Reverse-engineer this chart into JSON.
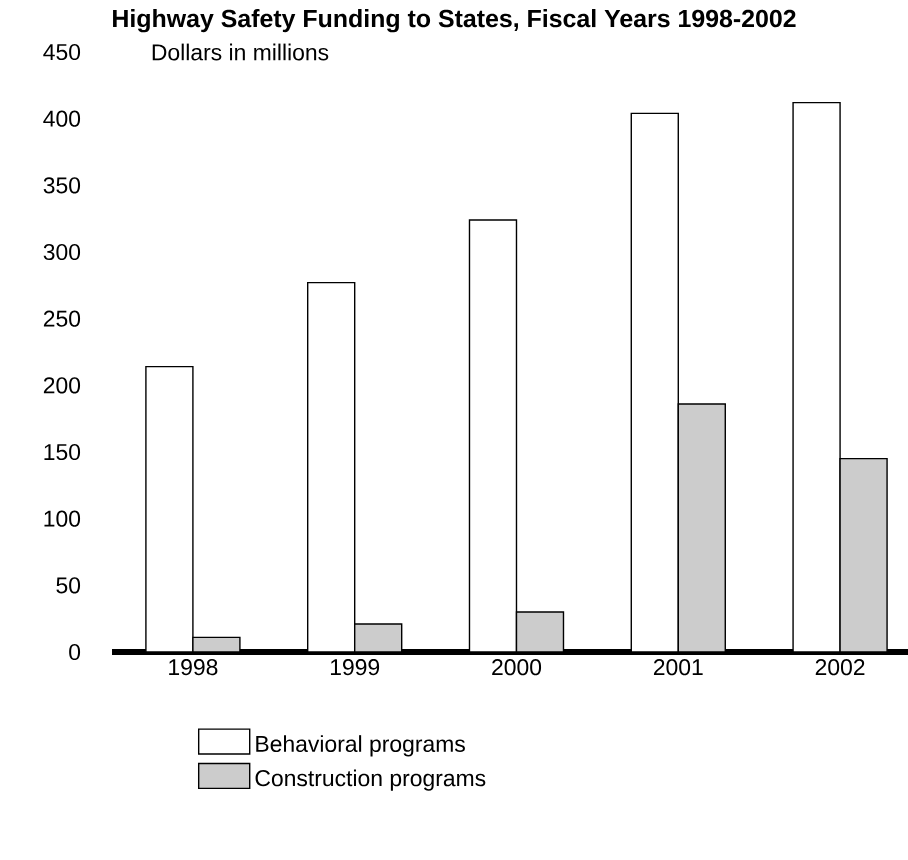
{
  "chart_data": {
    "type": "bar",
    "title": "Highway Safety Funding to States, Fiscal Years 1998-2002",
    "ylabel": "Dollars in millions",
    "categories": [
      "1998",
      "1999",
      "2000",
      "2001",
      "2002"
    ],
    "series": [
      {
        "name": "Behavioral programs",
        "color": "#ffffff",
        "values": [
          214,
          277,
          324,
          404,
          412
        ]
      },
      {
        "name": "Construction programs",
        "color": "#cccccc",
        "values": [
          11,
          21,
          30,
          186,
          145
        ]
      }
    ],
    "ylim": [
      0,
      450
    ],
    "yticks": [
      0,
      50,
      100,
      150,
      200,
      250,
      300,
      350,
      400,
      450
    ],
    "legend": "bottom"
  }
}
